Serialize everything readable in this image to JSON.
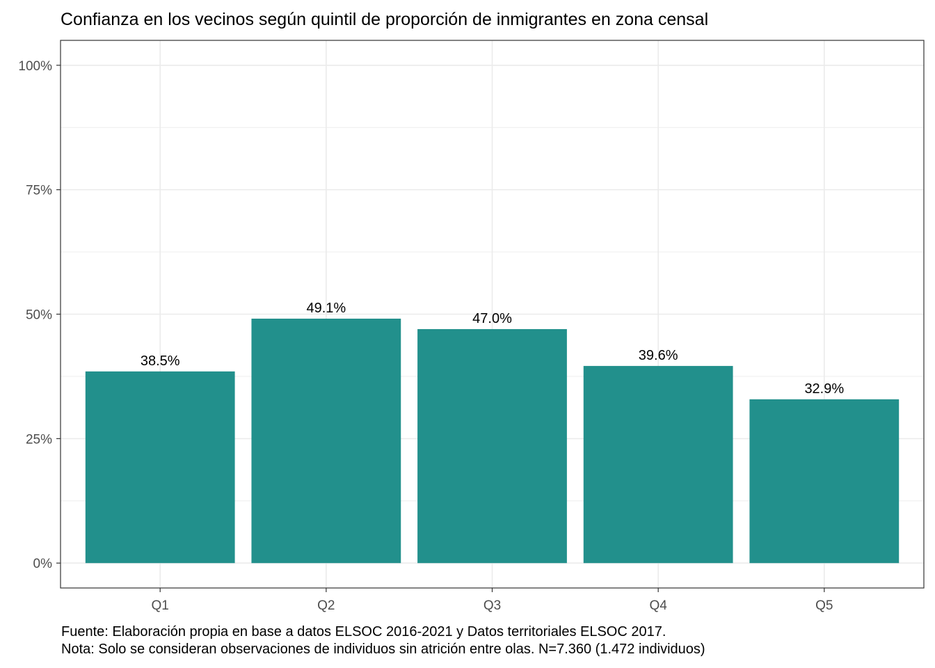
{
  "chart_data": {
    "type": "bar",
    "title": "Confianza en los vecinos según quintil de proporción de inmigrantes en zona censal",
    "categories": [
      "Q1",
      "Q2",
      "Q3",
      "Q4",
      "Q5"
    ],
    "values": [
      38.5,
      49.1,
      47.0,
      39.6,
      32.9
    ],
    "value_labels": [
      "38.5%",
      "49.1%",
      "47.0%",
      "39.6%",
      "32.9%"
    ],
    "y_ticks": [
      0,
      25,
      50,
      75,
      100
    ],
    "y_tick_labels": [
      "0%",
      "25%",
      "50%",
      "75%",
      "100%"
    ],
    "ylim": [
      -5,
      105
    ],
    "xlabel": "",
    "ylabel": "",
    "grid": true,
    "bar_color": "#22908C"
  },
  "caption": {
    "source": "Fuente: Elaboración propia en base a datos ELSOC 2016-2021 y Datos territoriales ELSOC 2017.",
    "note": "Nota: Solo se consideran observaciones de individuos sin atrición entre olas. N=7.360 (1.472 individuos)"
  }
}
